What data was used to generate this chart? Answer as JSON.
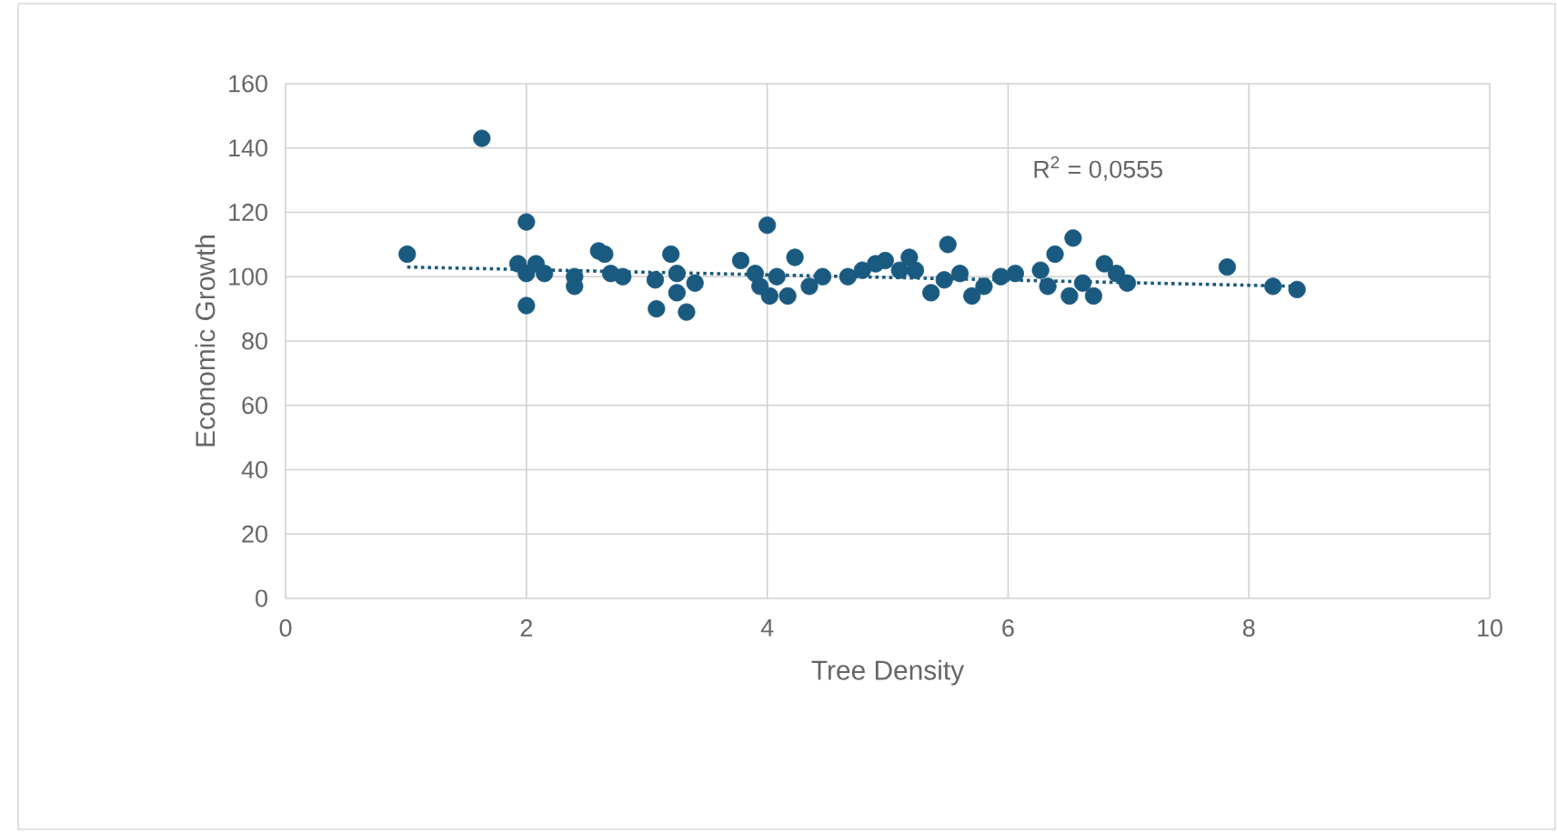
{
  "chart_data": {
    "type": "scatter",
    "xlabel": "Tree Density",
    "ylabel": "Economic Growth",
    "xlim": [
      0,
      10
    ],
    "xticks": [
      0,
      2,
      4,
      6,
      8,
      10
    ],
    "ylim": [
      0,
      160
    ],
    "yticks": [
      0,
      20,
      40,
      60,
      80,
      100,
      120,
      140,
      160
    ],
    "grid": true,
    "annotations": [
      "R$^{2}$ = 0,0555"
    ],
    "series": [
      {
        "color": "#1a5a80",
        "marker": "circle",
        "x": [
          1.01,
          1.63,
          2.0,
          2.0,
          2.0,
          1.93,
          2.08,
          2.15,
          2.4,
          2.4,
          2.6,
          2.65,
          2.7,
          2.8,
          3.07,
          3.08,
          3.2,
          3.25,
          3.33,
          3.4,
          3.25,
          3.78,
          3.9,
          3.94,
          4.0,
          4.02,
          4.08,
          4.17,
          4.23,
          4.35,
          4.46,
          4.67,
          4.79,
          4.9,
          4.98,
          5.1,
          5.18,
          5.23,
          5.36,
          5.5,
          5.47,
          5.6,
          5.7,
          5.8,
          5.94,
          6.06,
          6.27,
          6.33,
          6.39,
          6.54,
          6.51,
          6.62,
          6.71,
          6.8,
          6.9,
          6.99,
          7.82,
          8.2,
          8.4
        ],
        "values": [
          107,
          143,
          117,
          101,
          91,
          104,
          104,
          101,
          100,
          97,
          108,
          107,
          101,
          100,
          99,
          90,
          107,
          101,
          89,
          98,
          95,
          105,
          101,
          97,
          116,
          94,
          100,
          94,
          106,
          97,
          100,
          100,
          102,
          104,
          105,
          102,
          106,
          102,
          95,
          110,
          99,
          101,
          94,
          97,
          100,
          101,
          102,
          97,
          107,
          112,
          94,
          98,
          94,
          104,
          101,
          98,
          103,
          97,
          96
        ]
      },
      {
        "type": "line",
        "color": "#1a5a80",
        "line_style": "dotted",
        "marker": "none",
        "x": [
          1.01,
          8.4
        ],
        "values": [
          103,
          97
        ]
      }
    ]
  }
}
